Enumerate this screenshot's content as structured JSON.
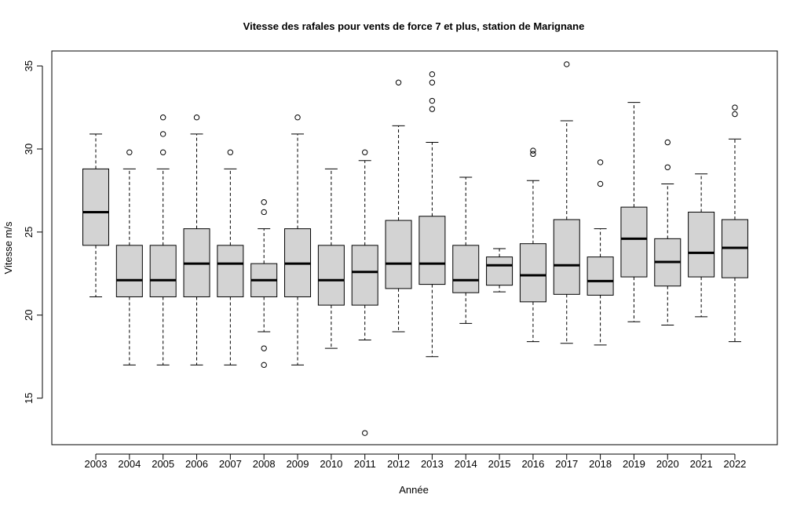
{
  "chart_data": {
    "type": "boxplot",
    "title": "Vitesse des rafales pour vents de force 7 et plus, station de Marignane",
    "xlabel": "Année",
    "ylabel": "Vitesse m/s",
    "ylim": [
      12.2,
      35.9
    ],
    "y_ticks": [
      15,
      20,
      25,
      30,
      35
    ],
    "grid": false,
    "box_fill": "#d3d3d3",
    "stroke_color": "#000000",
    "categories": [
      "2003",
      "2004",
      "2005",
      "2006",
      "2007",
      "2008",
      "2009",
      "2010",
      "2011",
      "2012",
      "2013",
      "2014",
      "2015",
      "2016",
      "2017",
      "2018",
      "2019",
      "2020",
      "2021",
      "2022"
    ],
    "boxes": [
      {
        "whisker_low": 21.1,
        "q1": 24.2,
        "median": 26.2,
        "q3": 28.8,
        "whisker_high": 30.9,
        "outliers": []
      },
      {
        "whisker_low": 17.0,
        "q1": 21.1,
        "median": 22.1,
        "q3": 24.2,
        "whisker_high": 28.8,
        "outliers": [
          29.8
        ]
      },
      {
        "whisker_low": 17.0,
        "q1": 21.1,
        "median": 22.1,
        "q3": 24.2,
        "whisker_high": 28.8,
        "outliers": [
          29.8,
          30.9,
          31.9
        ]
      },
      {
        "whisker_low": 17.0,
        "q1": 21.1,
        "median": 23.1,
        "q3": 25.2,
        "whisker_high": 30.9,
        "outliers": [
          31.9
        ]
      },
      {
        "whisker_low": 17.0,
        "q1": 21.1,
        "median": 23.1,
        "q3": 24.2,
        "whisker_high": 28.8,
        "outliers": [
          29.8
        ]
      },
      {
        "whisker_low": 19.0,
        "q1": 21.1,
        "median": 22.1,
        "q3": 23.1,
        "whisker_high": 25.2,
        "outliers": [
          17.0,
          18.0,
          26.2,
          26.8
        ]
      },
      {
        "whisker_low": 17.0,
        "q1": 21.1,
        "median": 23.1,
        "q3": 25.2,
        "whisker_high": 30.9,
        "outliers": [
          31.9
        ]
      },
      {
        "whisker_low": 18.0,
        "q1": 20.6,
        "median": 22.1,
        "q3": 24.2,
        "whisker_high": 28.8,
        "outliers": []
      },
      {
        "whisker_low": 18.5,
        "q1": 20.6,
        "median": 22.6,
        "q3": 24.2,
        "whisker_high": 29.3,
        "outliers": [
          12.9,
          29.8
        ]
      },
      {
        "whisker_low": 19.0,
        "q1": 21.6,
        "median": 23.1,
        "q3": 25.7,
        "whisker_high": 31.4,
        "outliers": [
          34.0
        ]
      },
      {
        "whisker_low": 17.5,
        "q1": 21.85,
        "median": 23.1,
        "q3": 25.95,
        "whisker_high": 30.4,
        "outliers": [
          32.4,
          32.9,
          34.0,
          34.5
        ]
      },
      {
        "whisker_low": 19.5,
        "q1": 21.35,
        "median": 22.1,
        "q3": 24.2,
        "whisker_high": 28.3,
        "outliers": []
      },
      {
        "whisker_low": 21.4,
        "q1": 21.8,
        "median": 23.0,
        "q3": 23.5,
        "whisker_high": 24.0,
        "outliers": []
      },
      {
        "whisker_low": 18.4,
        "q1": 20.8,
        "median": 22.4,
        "q3": 24.3,
        "whisker_high": 28.1,
        "outliers": [
          29.7,
          29.9
        ]
      },
      {
        "whisker_low": 18.3,
        "q1": 21.25,
        "median": 23.0,
        "q3": 25.75,
        "whisker_high": 31.7,
        "outliers": [
          35.1
        ]
      },
      {
        "whisker_low": 18.2,
        "q1": 21.2,
        "median": 22.05,
        "q3": 23.5,
        "whisker_high": 25.2,
        "outliers": [
          27.9,
          29.2
        ]
      },
      {
        "whisker_low": 19.6,
        "q1": 22.3,
        "median": 24.6,
        "q3": 26.5,
        "whisker_high": 32.8,
        "outliers": []
      },
      {
        "whisker_low": 19.4,
        "q1": 21.75,
        "median": 23.2,
        "q3": 24.6,
        "whisker_high": 27.9,
        "outliers": [
          28.9,
          30.4
        ]
      },
      {
        "whisker_low": 19.9,
        "q1": 22.3,
        "median": 23.75,
        "q3": 26.2,
        "whisker_high": 28.5,
        "outliers": []
      },
      {
        "whisker_low": 18.4,
        "q1": 22.25,
        "median": 24.05,
        "q3": 25.75,
        "whisker_high": 30.6,
        "outliers": [
          32.1,
          32.5
        ]
      }
    ]
  }
}
